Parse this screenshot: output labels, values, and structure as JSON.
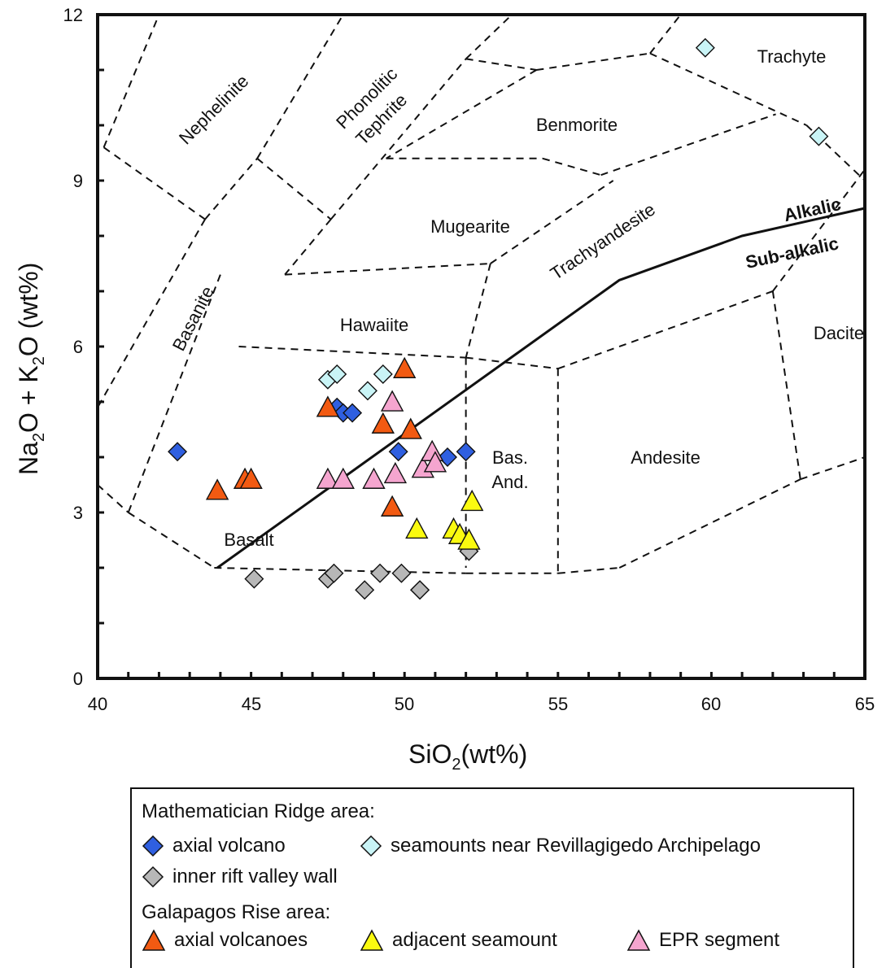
{
  "chart_data": {
    "type": "scatter",
    "xlabel_main": "SiO",
    "xlabel_sub": "2",
    "xlabel_rest": "(wt%)",
    "ylabel_parts": [
      "Na",
      "2",
      "O + K",
      "2",
      "O (wt%)"
    ],
    "xlim": [
      40,
      65
    ],
    "ylim": [
      0,
      12
    ],
    "x_ticks": [
      "40",
      "45",
      "50",
      "55",
      "60",
      "65"
    ],
    "y_ticks": [
      "0",
      "3",
      "6",
      "9",
      "12"
    ],
    "field_labels": {
      "nephelinite": "Nephelinite",
      "phonolitic": "Phonolitic",
      "tephrite": "Tephrite",
      "trachyte": "Trachyte",
      "benmorite": "Benmorite",
      "mugearite": "Mugearite",
      "trachyandesite": "Trachyandesite",
      "basanite": "Basanite",
      "hawaiite": "Hawaiite",
      "alkalic": "Alkalic",
      "subalkalic": "Sub-alkalic",
      "dacite": "Dacite",
      "bas": "Bas.",
      "and": "And.",
      "andesite": "Andesite",
      "basalt": "Basalt"
    },
    "boundaries": [
      [
        [
          40.2,
          9.6
        ],
        [
          42.0,
          12.0
        ]
      ],
      [
        [
          40.2,
          9.6
        ],
        [
          43.5,
          8.3
        ]
      ],
      [
        [
          43.5,
          8.3
        ],
        [
          45.2,
          9.4
        ]
      ],
      [
        [
          45.2,
          9.4
        ],
        [
          48.0,
          12.0
        ]
      ],
      [
        [
          45.2,
          9.4
        ],
        [
          47.6,
          8.3
        ]
      ],
      [
        [
          47.6,
          8.3
        ],
        [
          52.0,
          11.2
        ]
      ],
      [
        [
          52.0,
          11.2
        ],
        [
          53.5,
          12.0
        ]
      ],
      [
        [
          52.0,
          11.2
        ],
        [
          54.3,
          11.0
        ]
      ],
      [
        [
          54.3,
          11.0
        ],
        [
          58.0,
          11.3
        ]
      ],
      [
        [
          58.0,
          11.3
        ],
        [
          59.0,
          12.0
        ]
      ],
      [
        [
          58.0,
          11.3
        ],
        [
          63.1,
          10.0
        ]
      ],
      [
        [
          63.1,
          10.0
        ],
        [
          65.0,
          9.0
        ]
      ],
      [
        [
          54.3,
          11.0
        ],
        [
          49.4,
          9.4
        ]
      ],
      [
        [
          49.4,
          9.4
        ],
        [
          54.5,
          9.4
        ]
      ],
      [
        [
          54.5,
          9.4
        ],
        [
          56.4,
          9.1
        ]
      ],
      [
        [
          56.4,
          9.1
        ],
        [
          62.1,
          10.2
        ]
      ],
      [
        [
          47.6,
          8.3
        ],
        [
          46.1,
          7.3
        ]
      ],
      [
        [
          43.5,
          8.3
        ],
        [
          40.0,
          4.9
        ]
      ],
      [
        [
          44.0,
          7.3
        ],
        [
          41.0,
          3.0
        ]
      ],
      [
        [
          46.1,
          7.3
        ],
        [
          52.8,
          7.5
        ]
      ],
      [
        [
          52.8,
          7.5
        ],
        [
          56.8,
          9.0
        ]
      ],
      [
        [
          52.8,
          7.5
        ],
        [
          52.0,
          5.8
        ]
      ],
      [
        [
          44.6,
          6.0
        ],
        [
          52.0,
          5.8
        ]
      ],
      [
        [
          52.0,
          5.8
        ],
        [
          55.0,
          5.6
        ]
      ],
      [
        [
          55.0,
          5.6
        ],
        [
          62.0,
          7.0
        ]
      ],
      [
        [
          62.0,
          7.0
        ],
        [
          65.0,
          9.2
        ]
      ],
      [
        [
          62.0,
          7.0
        ],
        [
          62.9,
          3.6
        ]
      ],
      [
        [
          62.9,
          3.6
        ],
        [
          65.0,
          4.0
        ]
      ],
      [
        [
          52.0,
          5.8
        ],
        [
          52.0,
          2.0
        ]
      ],
      [
        [
          55.0,
          5.6
        ],
        [
          55.0,
          1.9
        ]
      ],
      [
        [
          55.0,
          1.9
        ],
        [
          57.0,
          2.0
        ]
      ],
      [
        [
          57.0,
          2.0
        ],
        [
          62.9,
          3.6
        ]
      ],
      [
        [
          40.0,
          3.5
        ],
        [
          41.0,
          3.0
        ]
      ],
      [
        [
          41.0,
          3.0
        ],
        [
          43.8,
          2.0
        ]
      ],
      [
        [
          43.8,
          2.0
        ],
        [
          52.0,
          1.9
        ]
      ],
      [
        [
          52.0,
          1.9
        ],
        [
          55.0,
          1.9
        ]
      ]
    ],
    "alkalic_line": [
      [
        43.9,
        2.0
      ],
      [
        57.0,
        7.2
      ],
      [
        61.0,
        8.0
      ],
      [
        65.0,
        8.5
      ]
    ],
    "series": [
      {
        "name": "axial volcano",
        "marker": "diamond",
        "color": "#2f5fe0",
        "points": [
          [
            42.6,
            4.1
          ],
          [
            47.8,
            4.9
          ],
          [
            48.0,
            4.8
          ],
          [
            48.3,
            4.8
          ],
          [
            49.8,
            4.1
          ],
          [
            51.4,
            4.0
          ],
          [
            52.0,
            4.1
          ]
        ]
      },
      {
        "name": "seamounts near Revillagigedo Archipelago",
        "marker": "diamond",
        "color": "#c9f4f6",
        "points": [
          [
            47.5,
            5.4
          ],
          [
            47.8,
            5.5
          ],
          [
            48.8,
            5.2
          ],
          [
            49.3,
            5.5
          ],
          [
            59.8,
            11.4
          ],
          [
            63.5,
            9.8
          ]
        ]
      },
      {
        "name": "inner rift valley wall",
        "marker": "diamond",
        "color": "#b7b7b7",
        "points": [
          [
            45.1,
            1.8
          ],
          [
            47.5,
            1.8
          ],
          [
            47.7,
            1.9
          ],
          [
            48.7,
            1.6
          ],
          [
            49.2,
            1.9
          ],
          [
            49.9,
            1.9
          ],
          [
            50.5,
            1.6
          ],
          [
            50.5,
            1.6
          ],
          [
            52.1,
            2.3
          ]
        ]
      },
      {
        "name": "axial volcanoes",
        "marker": "triangle",
        "color": "#f25a12",
        "points": [
          [
            43.9,
            3.4
          ],
          [
            44.8,
            3.6
          ],
          [
            45.0,
            3.6
          ],
          [
            47.5,
            4.9
          ],
          [
            49.3,
            4.6
          ],
          [
            50.0,
            5.6
          ],
          [
            50.2,
            4.5
          ],
          [
            49.6,
            3.1
          ]
        ]
      },
      {
        "name": "adjacent seamount",
        "marker": "triangle",
        "color": "#fafa10",
        "points": [
          [
            50.4,
            2.7
          ],
          [
            51.6,
            2.7
          ],
          [
            51.8,
            2.6
          ],
          [
            52.2,
            3.2
          ],
          [
            52.1,
            2.5
          ]
        ]
      },
      {
        "name": "EPR segment",
        "marker": "triangle",
        "color": "#f5a5cf",
        "points": [
          [
            47.5,
            3.6
          ],
          [
            48.0,
            3.6
          ],
          [
            49.0,
            3.6
          ],
          [
            49.6,
            5.0
          ],
          [
            49.7,
            3.7
          ],
          [
            50.6,
            3.8
          ],
          [
            50.9,
            4.1
          ],
          [
            51.0,
            3.9
          ]
        ]
      }
    ],
    "legend": {
      "group1_title": "Mathematician Ridge area:",
      "group2_title": "Galapagos Rise area:",
      "placement": "bottom"
    }
  }
}
